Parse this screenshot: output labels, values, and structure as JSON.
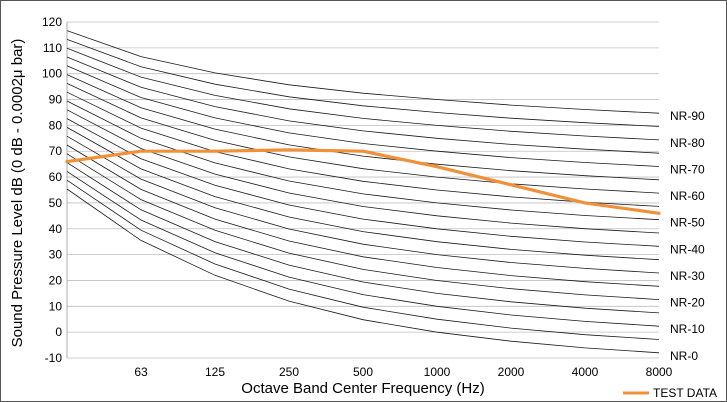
{
  "chart_data": {
    "type": "line",
    "title": "",
    "xlabel": "Octave Band Center Frequency (Hz)",
    "ylabel": "Sound Pressure Level dB (0 dB - 0.0002μ bar)",
    "x_tick_labels": [
      "63",
      "125",
      "250",
      "500",
      "1000",
      "2000",
      "4000",
      "8000"
    ],
    "y_ticks": [
      -10,
      0,
      10,
      20,
      30,
      40,
      50,
      60,
      70,
      80,
      90,
      100,
      110,
      120
    ],
    "ylim": [
      -10,
      120
    ],
    "grid": "horizontal",
    "curve_family_labels": [
      "NR-90",
      "NR-80",
      "NR-70",
      "NR-60",
      "NR-50",
      "NR-40",
      "NR-30",
      "NR-20",
      "NR-10",
      "NR-0"
    ],
    "curve_family": {
      "bands": [
        "31.5",
        "63",
        "125",
        "250",
        "500",
        "1000",
        "2000",
        "4000",
        "8000"
      ],
      "nr0_values": [
        55.4,
        35.5,
        22,
        12,
        4.8,
        0,
        -3.5,
        -6.1,
        -8
      ],
      "nr_step": 5,
      "nr_max": 90,
      "nr0_slopes": [
        0.681,
        0.79,
        0.87,
        0.93,
        0.974,
        1.0,
        1.015,
        1.025,
        1.03
      ]
    },
    "series": [
      {
        "name": "TEST DATA",
        "color": "#f0913a",
        "x": [
          "31.5",
          "63",
          "125",
          "250",
          "500",
          "1000",
          "2000",
          "4000",
          "8000"
        ],
        "values": [
          66,
          70,
          70,
          70.5,
          70,
          64,
          57,
          50,
          46
        ]
      }
    ],
    "legend_position": "bottom-right"
  }
}
